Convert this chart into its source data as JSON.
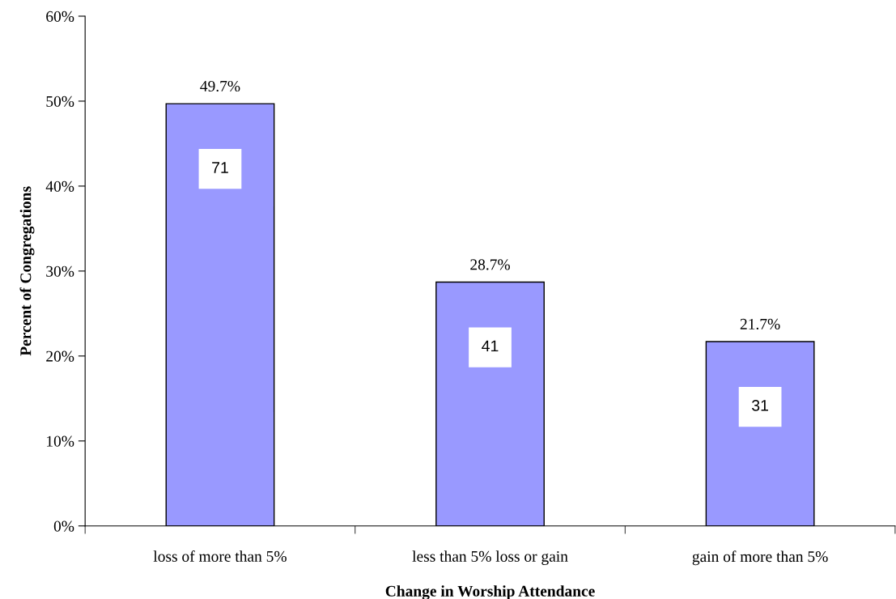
{
  "chart_data": {
    "type": "bar",
    "xlabel": "Change in Worship Attendance",
    "ylabel": "Percent of Congregations",
    "categories": [
      "loss of more than 5%",
      "less than 5% loss or gain",
      "gain of more than 5%"
    ],
    "values": [
      49.7,
      28.7,
      21.7
    ],
    "value_labels": [
      "49.7%",
      "28.7%",
      "21.7%"
    ],
    "color": "#9999ff",
    "ylim": [
      0,
      60
    ],
    "yticks": [
      {
        "value": 0,
        "label": "0%"
      },
      {
        "value": 10,
        "label": "10%"
      },
      {
        "value": 20,
        "label": "20%"
      },
      {
        "value": 30,
        "label": "30%"
      },
      {
        "value": 40,
        "label": "40%"
      },
      {
        "value": 50,
        "label": "50%"
      },
      {
        "value": 60,
        "label": "60%"
      }
    ],
    "annotations": [
      "71",
      "41",
      "31"
    ],
    "grid": false,
    "legend": false
  }
}
